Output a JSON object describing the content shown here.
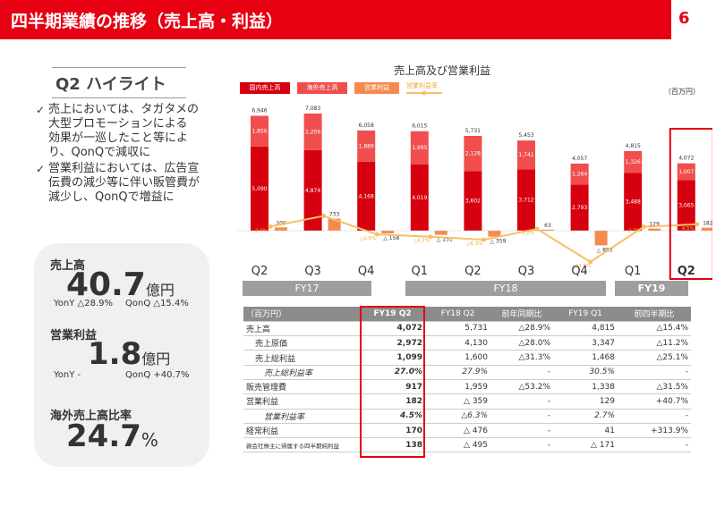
{
  "header": {
    "title": "四半期業績の推移（売上高・利益）",
    "page": "6"
  },
  "highlight": {
    "title": "Q2 ハイライト",
    "bullets": [
      {
        "lines": [
          "売上においては、タガタメの",
          "大型プロモーションによる",
          "効果が一巡したこと等によ",
          "り、QonQで減収に"
        ]
      },
      {
        "lines": [
          "営業利益においては、広告宣",
          "伝費の減少等に伴い販管費が",
          "減少し、QonQで増益に"
        ]
      }
    ],
    "check": "✓"
  },
  "kpis": {
    "sales": {
      "label": "売上高",
      "value": "40.7",
      "unit": "億円",
      "yony": "YonY △28.9%",
      "qonq": "QonQ △15.4%"
    },
    "op": {
      "label": "営業利益",
      "value": "1.8",
      "unit": "億円",
      "yony": "YonY  -",
      "qonq": "QonQ +40.7%"
    },
    "overseas": {
      "label": "海外売上高比率",
      "value": "24.7",
      "unit": "%"
    }
  },
  "chart_data": {
    "type": "bar",
    "title": "売上高及び営業利益",
    "unit_note": "（百万円）",
    "legend": [
      "国内売上高",
      "海外売上高",
      "営業利益",
      "営業利益率"
    ],
    "colors": {
      "domestic": "#d7000f",
      "overseas": "#f04e4e",
      "op": "#f58a4e",
      "margin": "#f5c06a"
    },
    "categories": [
      "Q2",
      "Q3",
      "Q4",
      "Q1",
      "Q2",
      "Q3",
      "Q4",
      "Q1",
      "Q2"
    ],
    "fiscal_years": [
      {
        "label": "FY17",
        "quarters": 3
      },
      {
        "label": "FY18",
        "quarters": 4
      },
      {
        "label": "FY19",
        "quarters": 2
      }
    ],
    "series": [
      {
        "name": "国内売上高",
        "values": [
          5090,
          4874,
          4168,
          4019,
          3602,
          3712,
          2793,
          3488,
          3065
        ]
      },
      {
        "name": "海外売上高",
        "values": [
          1856,
          2209,
          1889,
          1995,
          2128,
          1741,
          1264,
          1326,
          1007
        ]
      },
      {
        "name": "営業利益",
        "values": [
          200,
          733,
          -158,
          -251,
          -359,
          63,
          -883,
          129,
          182
        ]
      }
    ],
    "totals": [
      "6,946",
      "7,083",
      "6,058",
      "6,015",
      "5,731",
      "5,453",
      "4,057",
      "4,815",
      "4,072"
    ],
    "domestic_labels": [
      "5,090",
      "4,874",
      "4,168",
      "4,019",
      "3,602",
      "3,712",
      "2,793",
      "3,488",
      "3,065"
    ],
    "overseas_labels": [
      "1,856",
      "2,209",
      "1,889",
      "1,995",
      "2,128",
      "1,741",
      "1,264",
      "1,326",
      "1,007"
    ],
    "op_labels": [
      "200",
      "733",
      "△ 158",
      "△ 251",
      "△ 359",
      "63",
      "△ 883",
      "129",
      "182"
    ],
    "margin_values": [
      2.9,
      10.3,
      -2.6,
      -4.2,
      -6.3,
      1.2,
      -21.8,
      2.7,
      4.5
    ],
    "margin_labels": [
      "2.9%",
      "",
      "△2.6%",
      "△4.2%",
      "△6.3%",
      "1.2%",
      "△21.8%",
      "2.7%",
      "4.5%"
    ]
  },
  "table": {
    "headers": [
      "（百万円）",
      "FY19 Q2",
      "FY18 Q2",
      "前年同期比",
      "FY19 Q1",
      "前四半期比"
    ],
    "rows": [
      {
        "label": "売上高",
        "indent": 0,
        "italic": false,
        "cells": [
          "4,072",
          "5,731",
          "△28.9%",
          "4,815",
          "△15.4%"
        ]
      },
      {
        "label": "売上原価",
        "indent": 1,
        "italic": false,
        "cells": [
          "2,972",
          "4,130",
          "△28.0%",
          "3,347",
          "△11.2%"
        ]
      },
      {
        "label": "売上総利益",
        "indent": 1,
        "italic": false,
        "cells": [
          "1,099",
          "1,600",
          "△31.3%",
          "1,468",
          "△25.1%"
        ]
      },
      {
        "label": "売上総利益率",
        "indent": 2,
        "italic": true,
        "cells": [
          "27.0%",
          "27.9%",
          "-",
          "30.5%",
          "-"
        ]
      },
      {
        "label": "販売管理費",
        "indent": 0,
        "italic": false,
        "cells": [
          "917",
          "1,959",
          "△53.2%",
          "1,338",
          "△31.5%"
        ]
      },
      {
        "label": "営業利益",
        "indent": 0,
        "italic": false,
        "cells": [
          "182",
          "△ 359",
          "-",
          "129",
          "+40.7%"
        ]
      },
      {
        "label": "営業利益率",
        "indent": 2,
        "italic": true,
        "cells": [
          "4.5%",
          "△6.3%",
          "-",
          "2.7%",
          "-"
        ]
      },
      {
        "label": "経常利益",
        "indent": 0,
        "italic": false,
        "cells": [
          "170",
          "△ 476",
          "-",
          "41",
          "+313.9%"
        ]
      },
      {
        "label": "親会社株主に帰属する四半期純利益",
        "indent": 0,
        "italic": false,
        "cells": [
          "138",
          "△ 495",
          "-",
          "△ 171",
          "-"
        ]
      }
    ]
  }
}
